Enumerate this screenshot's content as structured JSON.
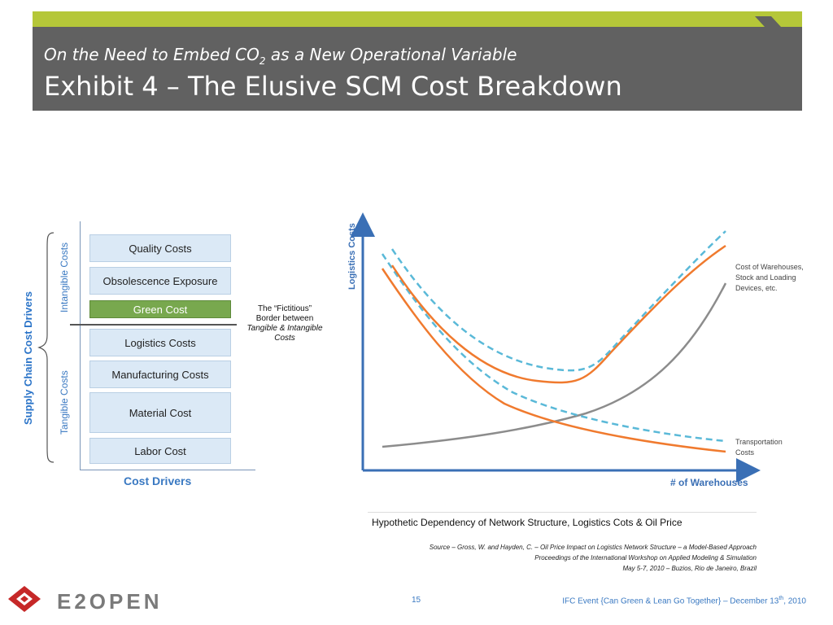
{
  "header": {
    "subtitle_pre": "On the Need to Embed CO",
    "subtitle_sub": "2",
    "subtitle_post": " as a New Operational Variable",
    "title": "Exhibit 4 – The Elusive SCM Cost Breakdown"
  },
  "left_diagram": {
    "vertical_title": "Supply Chain Cost Drivers",
    "intangible_label": "Intangible Costs",
    "tangible_label": "Tangible Costs",
    "x_label": "Cost Drivers",
    "boxes": {
      "quality": "Quality Costs",
      "obsolescence": "Obsolescence Exposure",
      "green": "Green Cost",
      "logistics": "Logistics Costs",
      "manufacturing": "Manufacturing Costs",
      "material": "Material Cost",
      "labor": "Labor Cost"
    },
    "fictitious_note": {
      "line1": "The “Fictitious”",
      "line2": "Border between",
      "line3": "Tangible & Intangible",
      "line4": "Costs"
    }
  },
  "chart": {
    "y_label": "Logistics Costs",
    "x_label": "# of Warehouses",
    "label_warehouse_1": "Cost of Warehouses,",
    "label_warehouse_2": "Stock and Loading",
    "label_warehouse_3": "Devices, etc.",
    "label_transport_1": "Transportation",
    "label_transport_2": "Costs",
    "colors": {
      "axis": "#3a6fb5",
      "total": "#f07a2e",
      "dashed": "#5ab9d8",
      "warehouse": "#8c8c8c"
    }
  },
  "caption": "Hypothetic Dependency of Network Structure, Logistics Cots & Oil Price",
  "source": {
    "line1": "Source – Gross, W. and Hayden, C. – Oil Price Impact on Logistics Network Structure – a Model-Based Approach",
    "line2": "Proceedings of the International Workshop on Applied Modeling & Simulation",
    "line3": "May 5-7, 2010 – Buzios, Rio de Janeiro, Brazil"
  },
  "footer": {
    "page_number": "15",
    "event_pre": "IFC Event {Can Green & Lean Go Together} – December 13",
    "event_sup": "th",
    "event_post": ", 2010",
    "logo_text": "E2OPEN"
  }
}
